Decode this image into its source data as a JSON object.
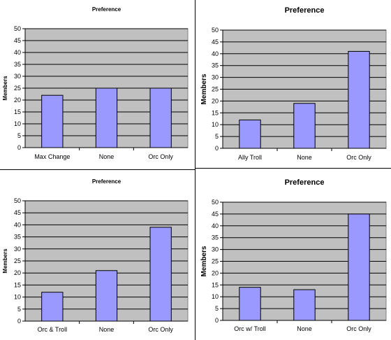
{
  "chart_data": [
    {
      "type": "bar",
      "title": "Preference",
      "ylabel": "Members",
      "xlabel": "",
      "ylim": [
        0,
        50
      ],
      "yticks": [
        0,
        5,
        10,
        15,
        20,
        25,
        30,
        35,
        40,
        45,
        50
      ],
      "categories": [
        "Max Change",
        "None",
        "Orc Only"
      ],
      "values": [
        22,
        25,
        25
      ],
      "grid": true,
      "legend": "none",
      "bar_color": "#9999ff",
      "plot_bg": "#c0c0c0"
    },
    {
      "type": "bar",
      "title": "Preference",
      "ylabel": "Members",
      "xlabel": "",
      "ylim": [
        0,
        50
      ],
      "yticks": [
        0,
        5,
        10,
        15,
        20,
        25,
        30,
        35,
        40,
        45,
        50
      ],
      "categories": [
        "Ally Troll",
        "None",
        "Orc Only"
      ],
      "values": [
        12,
        19,
        41
      ],
      "grid": true,
      "legend": "none",
      "bar_color": "#9999ff",
      "plot_bg": "#c0c0c0"
    },
    {
      "type": "bar",
      "title": "Preference",
      "ylabel": "Members",
      "xlabel": "",
      "ylim": [
        0,
        50
      ],
      "yticks": [
        0,
        5,
        10,
        15,
        20,
        25,
        30,
        35,
        40,
        45,
        50
      ],
      "categories": [
        "Orc & Troll",
        "None",
        "Orc Only"
      ],
      "values": [
        12,
        21,
        39
      ],
      "grid": true,
      "legend": "none",
      "bar_color": "#9999ff",
      "plot_bg": "#c0c0c0"
    },
    {
      "type": "bar",
      "title": "Preference",
      "ylabel": "Members",
      "xlabel": "",
      "ylim": [
        0,
        50
      ],
      "yticks": [
        0,
        5,
        10,
        15,
        20,
        25,
        30,
        35,
        40,
        45,
        50
      ],
      "categories": [
        "Orc w/ Troll",
        "None",
        "Orc Only"
      ],
      "values": [
        14,
        13,
        45
      ],
      "grid": true,
      "legend": "none",
      "bar_color": "#9999ff",
      "plot_bg": "#c0c0c0"
    }
  ]
}
